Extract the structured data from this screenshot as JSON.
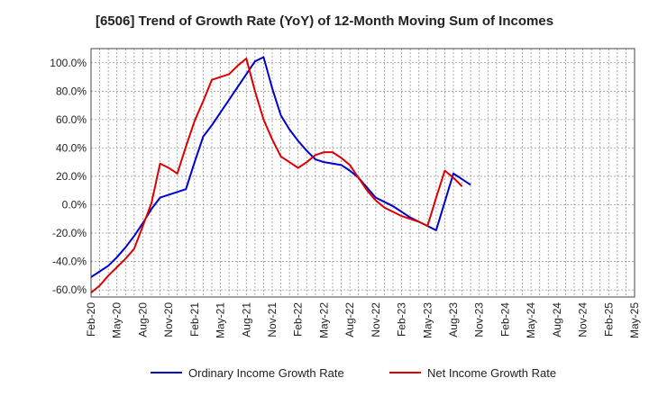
{
  "chart_data": {
    "type": "line",
    "title": "[6506]  Trend of Growth Rate (YoY) of 12-Month Moving Sum of Incomes",
    "xlabel": "",
    "ylabel": "",
    "x_tick_labels": [
      "Feb-20",
      "May-20",
      "Aug-20",
      "Nov-20",
      "Feb-21",
      "May-21",
      "Aug-21",
      "Nov-21",
      "Feb-22",
      "May-22",
      "Aug-22",
      "Nov-22",
      "Feb-23",
      "May-23",
      "Aug-23",
      "Nov-23",
      "Feb-24",
      "May-24",
      "Aug-24",
      "Nov-24",
      "Feb-25",
      "May-25"
    ],
    "y_ticks": [
      -60,
      -40,
      -20,
      0,
      20,
      40,
      60,
      80,
      100
    ],
    "y_tick_labels": [
      "-60.0%",
      "-40.0%",
      "-20.0%",
      "0.0%",
      "20.0%",
      "40.0%",
      "60.0%",
      "80.0%",
      "100.0%"
    ],
    "ylim": [
      -65,
      110
    ],
    "grid": true,
    "legend_position": "bottom",
    "series": [
      {
        "name": "Ordinary Income Growth Rate",
        "color": "#0000cc",
        "points": [
          [
            "Feb-20",
            -51
          ],
          [
            "Mar-20",
            -47
          ],
          [
            "Apr-20",
            -43
          ],
          [
            "May-20",
            -37
          ],
          [
            "Jun-20",
            -30
          ],
          [
            "Jul-20",
            -22
          ],
          [
            "Aug-20",
            -13
          ],
          [
            "Sep-20",
            -3
          ],
          [
            "Oct-20",
            5
          ],
          [
            "Nov-20",
            7
          ],
          [
            "Dec-20",
            9
          ],
          [
            "Jan-21",
            11
          ],
          [
            "Feb-21",
            30
          ],
          [
            "Mar-21",
            48
          ],
          [
            "Apr-21",
            56
          ],
          [
            "May-21",
            65
          ],
          [
            "Jun-21",
            74
          ],
          [
            "Jul-21",
            83
          ],
          [
            "Aug-21",
            92
          ],
          [
            "Sep-21",
            101
          ],
          [
            "Oct-21",
            104
          ],
          [
            "Nov-21",
            82
          ],
          [
            "Dec-21",
            63
          ],
          [
            "Jan-22",
            53
          ],
          [
            "Feb-22",
            45
          ],
          [
            "Mar-22",
            38
          ],
          [
            "Apr-22",
            32
          ],
          [
            "May-22",
            30
          ],
          [
            "Jun-22",
            29
          ],
          [
            "Jul-22",
            28
          ],
          [
            "Aug-22",
            24
          ],
          [
            "Sep-22",
            19
          ],
          [
            "Oct-22",
            12
          ],
          [
            "Nov-22",
            5
          ],
          [
            "Dec-22",
            2
          ],
          [
            "Jan-23",
            -1
          ],
          [
            "Feb-23",
            -5
          ],
          [
            "Mar-23",
            -9
          ],
          [
            "Apr-23",
            -12
          ],
          [
            "May-23",
            -15
          ],
          [
            "Jun-23",
            -18
          ],
          [
            "Jul-23",
            2
          ],
          [
            "Aug-23",
            22
          ],
          [
            "Sep-23",
            18
          ],
          [
            "Oct-23",
            14
          ]
        ]
      },
      {
        "name": "Net Income Growth Rate",
        "color": "#dd0000",
        "points": [
          [
            "Feb-20",
            -62
          ],
          [
            "Mar-20",
            -57
          ],
          [
            "Apr-20",
            -50
          ],
          [
            "May-20",
            -44
          ],
          [
            "Jun-20",
            -38
          ],
          [
            "Jul-20",
            -31
          ],
          [
            "Aug-20",
            -15
          ],
          [
            "Sep-20",
            1
          ],
          [
            "Oct-20",
            29
          ],
          [
            "Nov-20",
            26
          ],
          [
            "Dec-20",
            22
          ],
          [
            "Jan-21",
            41
          ],
          [
            "Feb-21",
            59
          ],
          [
            "Mar-21",
            73
          ],
          [
            "Apr-21",
            88
          ],
          [
            "May-21",
            90
          ],
          [
            "Jun-21",
            92
          ],
          [
            "Jul-21",
            98
          ],
          [
            "Aug-21",
            103
          ],
          [
            "Sep-21",
            80
          ],
          [
            "Oct-21",
            60
          ],
          [
            "Nov-21",
            46
          ],
          [
            "Dec-21",
            34
          ],
          [
            "Jan-22",
            30
          ],
          [
            "Feb-22",
            26
          ],
          [
            "Mar-22",
            30
          ],
          [
            "Apr-22",
            35
          ],
          [
            "May-22",
            37
          ],
          [
            "Jun-22",
            37
          ],
          [
            "Jul-22",
            33
          ],
          [
            "Aug-22",
            28
          ],
          [
            "Sep-22",
            19
          ],
          [
            "Oct-22",
            10
          ],
          [
            "Nov-22",
            3
          ],
          [
            "Dec-22",
            -2
          ],
          [
            "Jan-23",
            -5
          ],
          [
            "Feb-23",
            -8
          ],
          [
            "Mar-23",
            -10
          ],
          [
            "Apr-23",
            -12
          ],
          [
            "May-23",
            -15
          ],
          [
            "Jun-23",
            5
          ],
          [
            "Jul-23",
            24
          ],
          [
            "Aug-23",
            19
          ],
          [
            "Sep-23",
            13
          ]
        ]
      }
    ]
  }
}
